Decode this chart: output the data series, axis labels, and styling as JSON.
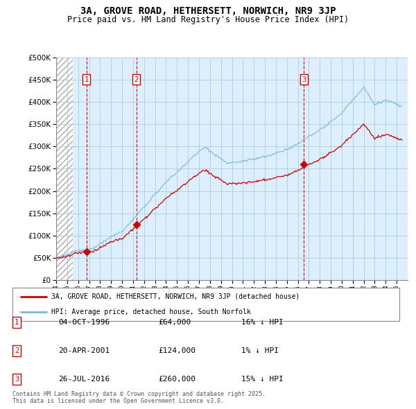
{
  "title_line1": "3A, GROVE ROAD, HETHERSETT, NORWICH, NR9 3JP",
  "title_line2": "Price paid vs. HM Land Registry's House Price Index (HPI)",
  "ytick_values": [
    0,
    50000,
    100000,
    150000,
    200000,
    250000,
    300000,
    350000,
    400000,
    450000,
    500000
  ],
  "xmin": 1994.0,
  "xmax": 2026.0,
  "ymin": 0,
  "ymax": 500000,
  "sale_dates": [
    1996.75,
    2001.3,
    2016.55
  ],
  "sale_prices": [
    64000,
    124000,
    260000
  ],
  "sale_labels": [
    "1",
    "2",
    "3"
  ],
  "legend_line1": "3A, GROVE ROAD, HETHERSETT, NORWICH, NR9 3JP (detached house)",
  "legend_line2": "HPI: Average price, detached house, South Norfolk",
  "table_rows": [
    [
      "1",
      "04-OCT-1996",
      "£64,000",
      "16% ↓ HPI"
    ],
    [
      "2",
      "20-APR-2001",
      "£124,000",
      "1% ↓ HPI"
    ],
    [
      "3",
      "26-JUL-2016",
      "£260,000",
      "15% ↓ HPI"
    ]
  ],
  "footer": "Contains HM Land Registry data © Crown copyright and database right 2025.\nThis data is licensed under the Open Government Licence v3.0.",
  "hpi_color": "#7ab8d9",
  "price_color": "#cc0000",
  "chart_bg_color": "#ddeeff",
  "hatch_region_end": 1995.5,
  "grid_color": "#aaccdd"
}
